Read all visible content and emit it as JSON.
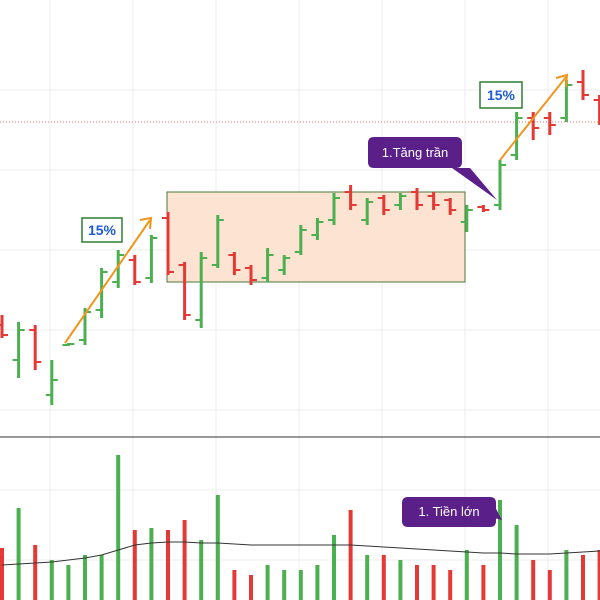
{
  "chart_data": [
    {
      "type": "ohlc",
      "up_color": "#4caf50",
      "down_color": "#e53935",
      "ylim": [
        0,
        440
      ],
      "open": [
        115,
        80,
        110,
        45,
        95,
        100,
        130,
        158,
        180,
        162,
        222,
        175,
        120,
        175,
        185,
        172,
        162,
        170,
        188,
        205,
        220,
        248,
        220,
        242,
        235,
        248,
        244,
        240,
        218,
        233,
        235,
        285,
        322,
        322,
        322,
        358,
        340
      ],
      "high": [
        125,
        118,
        115,
        80,
        97,
        132,
        172,
        190,
        185,
        205,
        228,
        178,
        188,
        225,
        188,
        175,
        192,
        185,
        215,
        222,
        247,
        255,
        242,
        245,
        247,
        252,
        248,
        242,
        235,
        235,
        280,
        328,
        328,
        328,
        360,
        370,
        345
      ],
      "low": [
        102,
        62,
        70,
        35,
        94,
        95,
        122,
        152,
        155,
        157,
        165,
        120,
        112,
        172,
        165,
        155,
        158,
        165,
        185,
        200,
        215,
        230,
        215,
        225,
        230,
        230,
        230,
        225,
        208,
        228,
        230,
        280,
        300,
        305,
        318,
        340,
        315
      ],
      "close": [
        105,
        110,
        78,
        60,
        96,
        128,
        168,
        185,
        158,
        202,
        168,
        125,
        182,
        220,
        170,
        160,
        185,
        182,
        210,
        218,
        242,
        235,
        238,
        230,
        244,
        235,
        235,
        230,
        230,
        230,
        275,
        322,
        312,
        315,
        355,
        345,
        320
      ],
      "annotations": [
        "15%",
        "15%",
        "1.Tăng trần"
      ]
    },
    {
      "type": "bar",
      "ylim": [
        0,
        160
      ],
      "values": [
        52,
        92,
        55,
        40,
        35,
        45,
        45,
        145,
        70,
        72,
        70,
        80,
        60,
        105,
        30,
        25,
        35,
        30,
        30,
        35,
        65,
        90,
        45,
        45,
        40,
        35,
        35,
        30,
        50,
        35,
        100,
        75,
        40,
        30,
        50,
        45,
        50
      ],
      "ma": [
        35,
        36,
        37,
        38,
        40,
        42,
        45,
        50,
        55,
        57,
        58,
        58,
        57,
        57,
        56,
        55,
        55,
        55,
        55,
        55,
        55,
        55,
        54,
        53,
        52,
        51,
        50,
        49,
        48,
        47,
        47,
        46,
        46,
        46,
        47,
        48,
        49
      ],
      "ma_color": "#333333",
      "annotations": [
        "1. Tiền lớn"
      ]
    }
  ]
}
